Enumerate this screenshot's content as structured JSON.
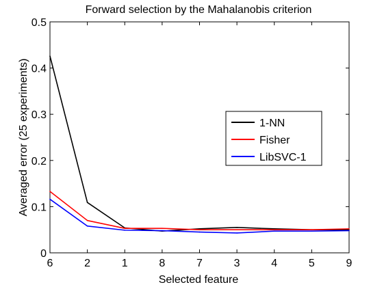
{
  "chart_data": {
    "type": "line",
    "title": "Forward selection by the Mahalanobis criterion",
    "xlabel": "Selected feature",
    "ylabel": "Averaged error (25 experiments)",
    "categories": [
      "6",
      "2",
      "1",
      "8",
      "7",
      "3",
      "4",
      "5",
      "9"
    ],
    "ylim": [
      0,
      0.5
    ],
    "yticks": [
      0,
      0.1,
      0.2,
      0.3,
      0.4,
      0.5
    ],
    "ytick_labels": [
      "0",
      "0.1",
      "0.2",
      "0.3",
      "0.4",
      "0.5"
    ],
    "grid": false,
    "legend_position": "center-right",
    "series": [
      {
        "name": "1-NN",
        "color": "#000000",
        "values": [
          0.426,
          0.109,
          0.054,
          0.047,
          0.052,
          0.055,
          0.052,
          0.05,
          0.05
        ]
      },
      {
        "name": "Fisher",
        "color": "#ff0000",
        "values": [
          0.133,
          0.07,
          0.053,
          0.053,
          0.05,
          0.05,
          0.05,
          0.05,
          0.052
        ]
      },
      {
        "name": "LibSVC-1",
        "color": "#0000ff",
        "values": [
          0.116,
          0.058,
          0.049,
          0.048,
          0.045,
          0.043,
          0.047,
          0.047,
          0.048
        ]
      }
    ]
  }
}
